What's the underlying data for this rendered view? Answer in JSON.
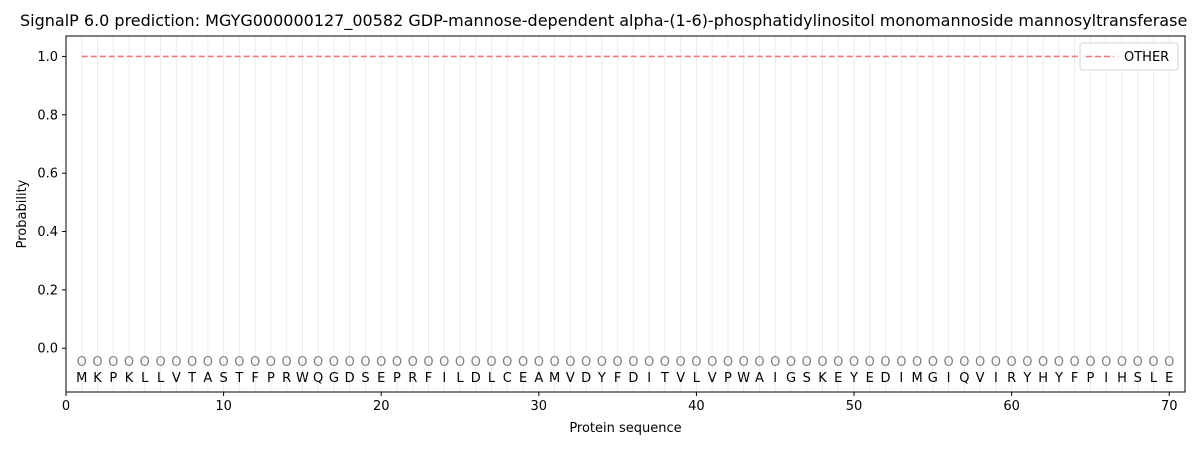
{
  "chart_data": {
    "type": "line",
    "title": "SignalP 6.0 prediction: MGYG000000127_00582 GDP-mannose-dependent alpha-(1-6)-phosphatidylinositol monomannoside mannosyltransferase",
    "xlabel": "Protein sequence",
    "ylabel": "Probability",
    "xlim": [
      0,
      71
    ],
    "ylim": [
      -0.15,
      1.07
    ],
    "x_ticks": [
      0,
      10,
      20,
      30,
      40,
      50,
      60,
      70
    ],
    "y_ticks": [
      0.0,
      0.2,
      0.4,
      0.6,
      0.8,
      1.0
    ],
    "sequence": [
      "M",
      "K",
      "P",
      "K",
      "L",
      "L",
      "V",
      "T",
      "A",
      "S",
      "T",
      "F",
      "P",
      "R",
      "W",
      "Q",
      "G",
      "D",
      "S",
      "E",
      "P",
      "R",
      "F",
      "I",
      "L",
      "D",
      "L",
      "C",
      "E",
      "A",
      "M",
      "V",
      "D",
      "Y",
      "F",
      "D",
      "I",
      "T",
      "V",
      "L",
      "V",
      "P",
      "W",
      "A",
      "I",
      "G",
      "S",
      "K",
      "E",
      "Y",
      "E",
      "D",
      "I",
      "M",
      "G",
      "I",
      "Q",
      "V",
      "I",
      "R",
      "Y",
      "H",
      "Y",
      "F",
      "P",
      "I",
      "H",
      "S",
      "L",
      "E"
    ],
    "state_labels": [
      "O",
      "O",
      "O",
      "O",
      "O",
      "O",
      "O",
      "O",
      "O",
      "O",
      "O",
      "O",
      "O",
      "O",
      "O",
      "O",
      "O",
      "O",
      "O",
      "O",
      "O",
      "O",
      "O",
      "O",
      "O",
      "O",
      "O",
      "O",
      "O",
      "O",
      "O",
      "O",
      "O",
      "O",
      "O",
      "O",
      "O",
      "O",
      "O",
      "O",
      "O",
      "O",
      "O",
      "O",
      "O",
      "O",
      "O",
      "O",
      "O",
      "O",
      "O",
      "O",
      "O",
      "O",
      "O",
      "O",
      "O",
      "O",
      "O",
      "O",
      "O",
      "O",
      "O",
      "O",
      "O",
      "O",
      "O",
      "O",
      "O",
      "O"
    ],
    "series": [
      {
        "name": "OTHER",
        "color": "#e87c7c",
        "style": "dashed",
        "x_start": 1,
        "x_end": 70,
        "values": [
          1,
          1,
          1,
          1,
          1,
          1,
          1,
          1,
          1,
          1,
          1,
          1,
          1,
          1,
          1,
          1,
          1,
          1,
          1,
          1,
          1,
          1,
          1,
          1,
          1,
          1,
          1,
          1,
          1,
          1,
          1,
          1,
          1,
          1,
          1,
          1,
          1,
          1,
          1,
          1,
          1,
          1,
          1,
          1,
          1,
          1,
          1,
          1,
          1,
          1,
          1,
          1,
          1,
          1,
          1,
          1,
          1,
          1,
          1,
          1,
          1,
          1,
          1,
          1,
          1,
          1,
          1,
          1,
          1,
          1
        ]
      }
    ],
    "legend": {
      "placement": "top-right"
    },
    "grid": {
      "vertical_per_residue": true,
      "color": "#ebebeb"
    }
  }
}
